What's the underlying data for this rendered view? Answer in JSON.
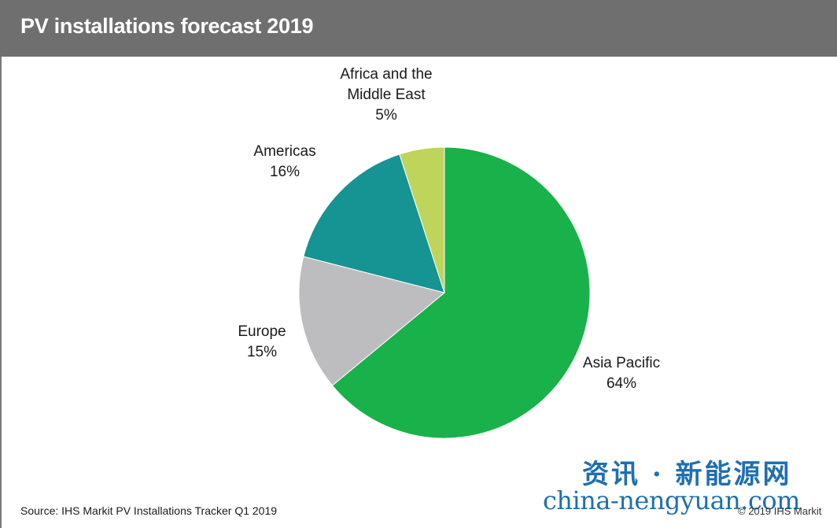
{
  "header": {
    "title": "PV installations forecast 2019"
  },
  "chart_data": {
    "type": "pie",
    "title": "PV installations forecast 2019",
    "unit": "%",
    "slices": [
      {
        "name": "Asia Pacific",
        "value": 64,
        "label": "64%",
        "color": "#19b14a",
        "label_lines": [
          "Asia Pacific",
          "64%"
        ]
      },
      {
        "name": "Europe",
        "value": 15,
        "label": "15%",
        "color": "#bdbdc0",
        "label_lines": [
          "Europe",
          "15%"
        ]
      },
      {
        "name": "Americas",
        "value": 16,
        "label": "16%",
        "color": "#169393",
        "label_lines": [
          "Americas",
          "16%"
        ]
      },
      {
        "name": "Africa and the Middle East",
        "value": 5,
        "label": "5%",
        "color": "#bfd45a",
        "label_lines": [
          "Africa and the",
          "Middle East",
          "5%"
        ]
      }
    ],
    "start": "top",
    "direction": "clockwise"
  },
  "footer": {
    "source": "Source: IHS Markit PV Installations Tracker Q1 2019",
    "copyright": "© 2019 IHS Markit"
  },
  "watermark": {
    "chinese": "资讯 · 新能源网",
    "url": "china-nengyuan.com"
  }
}
